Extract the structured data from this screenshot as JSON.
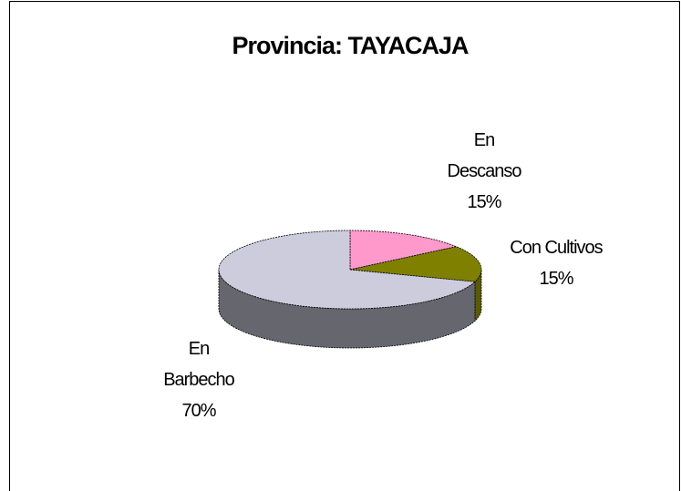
{
  "chart_data": {
    "type": "pie",
    "title": "Provincia: TAYACAJA",
    "categories": [
      "En Descanso",
      "Con Cultivos",
      "En Barbecho"
    ],
    "values": [
      15,
      15,
      70
    ],
    "value_labels": [
      "15%",
      "15%",
      "70%"
    ],
    "colors": [
      "#ff99cc",
      "#808000",
      "#ccccdd"
    ]
  }
}
